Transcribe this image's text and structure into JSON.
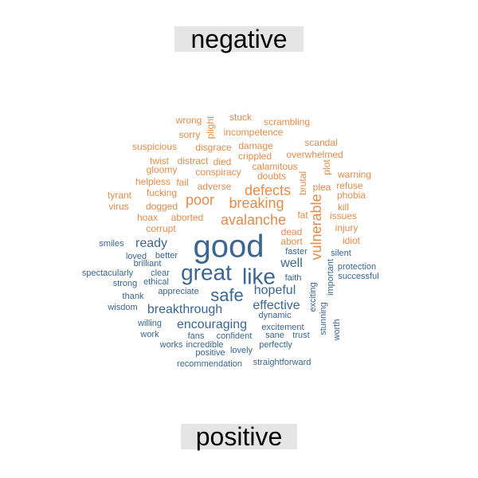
{
  "labels": {
    "top": "negative",
    "bottom": "positive"
  },
  "colors": {
    "negative": "#e58b4a",
    "positive": "#3a6691"
  },
  "words": [
    {
      "text": "wrong",
      "group": "negative",
      "size": 12
    },
    {
      "text": "plight",
      "group": "negative",
      "size": 12
    },
    {
      "text": "stuck",
      "group": "negative",
      "size": 12
    },
    {
      "text": "scrambling",
      "group": "negative",
      "size": 12
    },
    {
      "text": "sorry",
      "group": "negative",
      "size": 12
    },
    {
      "text": "incompetence",
      "group": "negative",
      "size": 12
    },
    {
      "text": "suspicious",
      "group": "negative",
      "size": 12
    },
    {
      "text": "disgrace",
      "group": "negative",
      "size": 12
    },
    {
      "text": "damage",
      "group": "negative",
      "size": 12
    },
    {
      "text": "scandal",
      "group": "negative",
      "size": 12
    },
    {
      "text": "crippled",
      "group": "negative",
      "size": 12
    },
    {
      "text": "overwhelmed",
      "group": "negative",
      "size": 12
    },
    {
      "text": "twist",
      "group": "negative",
      "size": 12
    },
    {
      "text": "distract",
      "group": "negative",
      "size": 12
    },
    {
      "text": "died",
      "group": "negative",
      "size": 12
    },
    {
      "text": "calamitous",
      "group": "negative",
      "size": 12
    },
    {
      "text": "gloomy",
      "group": "negative",
      "size": 12
    },
    {
      "text": "conspiracy",
      "group": "negative",
      "size": 12
    },
    {
      "text": "doubts",
      "group": "negative",
      "size": 12
    },
    {
      "text": "plot",
      "group": "negative",
      "size": 12
    },
    {
      "text": "warning",
      "group": "negative",
      "size": 12
    },
    {
      "text": "helpless",
      "group": "negative",
      "size": 12
    },
    {
      "text": "fail",
      "group": "negative",
      "size": 12
    },
    {
      "text": "brutal",
      "group": "negative",
      "size": 12
    },
    {
      "text": "plea",
      "group": "negative",
      "size": 12
    },
    {
      "text": "refuse",
      "group": "negative",
      "size": 12
    },
    {
      "text": "fucking",
      "group": "negative",
      "size": 12
    },
    {
      "text": "adverse",
      "group": "negative",
      "size": 12
    },
    {
      "text": "defects",
      "group": "negative",
      "size": 18
    },
    {
      "text": "tyrant",
      "group": "negative",
      "size": 12
    },
    {
      "text": "poor",
      "group": "negative",
      "size": 18
    },
    {
      "text": "phobia",
      "group": "negative",
      "size": 12
    },
    {
      "text": "breaking",
      "group": "negative",
      "size": 18
    },
    {
      "text": "virus",
      "group": "negative",
      "size": 12
    },
    {
      "text": "dogged",
      "group": "negative",
      "size": 12
    },
    {
      "text": "kill",
      "group": "negative",
      "size": 12
    },
    {
      "text": "vulnerable",
      "group": "negative",
      "size": 18
    },
    {
      "text": "hoax",
      "group": "negative",
      "size": 12
    },
    {
      "text": "aborted",
      "group": "negative",
      "size": 12
    },
    {
      "text": "avalanche",
      "group": "negative",
      "size": 18
    },
    {
      "text": "fat",
      "group": "negative",
      "size": 12
    },
    {
      "text": "issues",
      "group": "negative",
      "size": 12
    },
    {
      "text": "corrupt",
      "group": "negative",
      "size": 12
    },
    {
      "text": "injury",
      "group": "negative",
      "size": 12
    },
    {
      "text": "dead",
      "group": "negative",
      "size": 12
    },
    {
      "text": "abort",
      "group": "negative",
      "size": 12
    },
    {
      "text": "idiot",
      "group": "negative",
      "size": 12
    },
    {
      "text": "good",
      "group": "positive",
      "size": 40
    },
    {
      "text": "smiles",
      "group": "positive",
      "size": 11
    },
    {
      "text": "ready",
      "group": "positive",
      "size": 16
    },
    {
      "text": "silent",
      "group": "positive",
      "size": 11
    },
    {
      "text": "faster",
      "group": "positive",
      "size": 11
    },
    {
      "text": "loved",
      "group": "positive",
      "size": 11
    },
    {
      "text": "better",
      "group": "positive",
      "size": 11
    },
    {
      "text": "well",
      "group": "positive",
      "size": 16
    },
    {
      "text": "great",
      "group": "positive",
      "size": 28
    },
    {
      "text": "like",
      "group": "positive",
      "size": 28
    },
    {
      "text": "brilliant",
      "group": "positive",
      "size": 11
    },
    {
      "text": "protection",
      "group": "positive",
      "size": 11
    },
    {
      "text": "spectacularly",
      "group": "positive",
      "size": 11
    },
    {
      "text": "clear",
      "group": "positive",
      "size": 11
    },
    {
      "text": "faith",
      "group": "positive",
      "size": 11
    },
    {
      "text": "important",
      "group": "positive",
      "size": 11
    },
    {
      "text": "successful",
      "group": "positive",
      "size": 11
    },
    {
      "text": "strong",
      "group": "positive",
      "size": 11
    },
    {
      "text": "ethical",
      "group": "positive",
      "size": 11
    },
    {
      "text": "safe",
      "group": "positive",
      "size": 22
    },
    {
      "text": "hopeful",
      "group": "positive",
      "size": 16
    },
    {
      "text": "exciting",
      "group": "positive",
      "size": 11
    },
    {
      "text": "appreciate",
      "group": "positive",
      "size": 11
    },
    {
      "text": "thank",
      "group": "positive",
      "size": 11
    },
    {
      "text": "effective",
      "group": "positive",
      "size": 16
    },
    {
      "text": "wisdom",
      "group": "positive",
      "size": 11
    },
    {
      "text": "breakthrough",
      "group": "positive",
      "size": 16
    },
    {
      "text": "dynamic",
      "group": "positive",
      "size": 11
    },
    {
      "text": "encouraging",
      "group": "positive",
      "size": 16
    },
    {
      "text": "willing",
      "group": "positive",
      "size": 11
    },
    {
      "text": "excitement",
      "group": "positive",
      "size": 11
    },
    {
      "text": "stunning",
      "group": "positive",
      "size": 11
    },
    {
      "text": "work",
      "group": "positive",
      "size": 11
    },
    {
      "text": "fans",
      "group": "positive",
      "size": 11
    },
    {
      "text": "confident",
      "group": "positive",
      "size": 11
    },
    {
      "text": "sane",
      "group": "positive",
      "size": 11
    },
    {
      "text": "trust",
      "group": "positive",
      "size": 11
    },
    {
      "text": "worth",
      "group": "positive",
      "size": 11
    },
    {
      "text": "works",
      "group": "positive",
      "size": 11
    },
    {
      "text": "incredible",
      "group": "positive",
      "size": 11
    },
    {
      "text": "perfectly",
      "group": "positive",
      "size": 11
    },
    {
      "text": "positive",
      "group": "positive",
      "size": 11
    },
    {
      "text": "lovely",
      "group": "positive",
      "size": 11
    },
    {
      "text": "recommendation",
      "group": "positive",
      "size": 11
    },
    {
      "text": "straightforward",
      "group": "positive",
      "size": 11
    }
  ]
}
